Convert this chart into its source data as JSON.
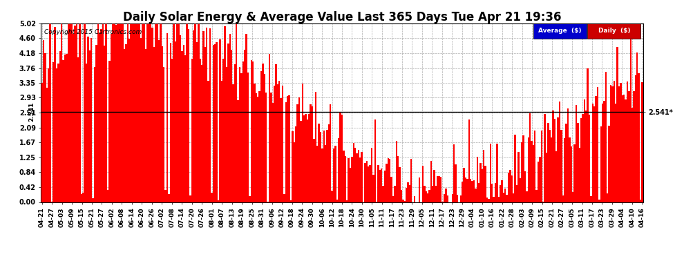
{
  "title": "Daily Solar Energy & Average Value Last 365 Days Tue Apr 21 19:36",
  "copyright": "Copyright 2015 Cartronics.com",
  "average_value": 2.541,
  "ylim": [
    0.0,
    5.02
  ],
  "yticks": [
    0.0,
    0.42,
    0.84,
    1.25,
    1.67,
    2.09,
    2.51,
    2.93,
    3.35,
    3.76,
    4.18,
    4.6,
    5.02
  ],
  "bar_color": "#ff0000",
  "avg_line_color": "#000000",
  "background_color": "#ffffff",
  "plot_bg_color": "#ffffff",
  "grid_color": "#999999",
  "title_fontsize": 12,
  "legend_avg_color": "#0000cc",
  "legend_daily_color": "#cc0000",
  "num_days": 365,
  "x_labels": [
    "04-21",
    "04-27",
    "05-03",
    "05-09",
    "05-15",
    "05-21",
    "05-27",
    "06-02",
    "06-08",
    "06-14",
    "06-20",
    "06-26",
    "07-02",
    "07-08",
    "07-14",
    "07-20",
    "07-26",
    "08-01",
    "08-07",
    "08-13",
    "08-19",
    "08-25",
    "08-31",
    "09-06",
    "09-12",
    "09-18",
    "09-24",
    "09-30",
    "10-06",
    "10-12",
    "10-18",
    "10-24",
    "10-30",
    "11-05",
    "11-11",
    "11-17",
    "11-23",
    "11-29",
    "12-05",
    "12-11",
    "12-17",
    "12-23",
    "12-29",
    "01-04",
    "01-10",
    "01-16",
    "01-22",
    "01-28",
    "02-03",
    "02-09",
    "02-15",
    "02-21",
    "02-27",
    "03-05",
    "03-11",
    "03-17",
    "03-23",
    "03-29",
    "04-04",
    "04-10",
    "04-16"
  ],
  "seed": 123
}
